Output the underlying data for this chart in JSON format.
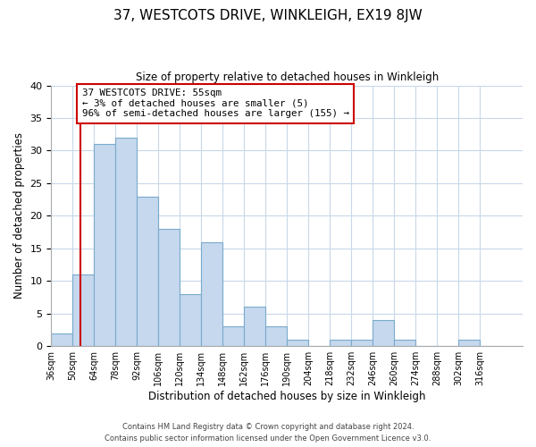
{
  "title": "37, WESTCOTS DRIVE, WINKLEIGH, EX19 8JW",
  "subtitle": "Size of property relative to detached houses in Winkleigh",
  "xlabel": "Distribution of detached houses by size in Winkleigh",
  "ylabel": "Number of detached properties",
  "bar_color": "#c5d8ed",
  "bar_edge_color": "#7aaacc",
  "bins": [
    "36sqm",
    "50sqm",
    "64sqm",
    "78sqm",
    "92sqm",
    "106sqm",
    "120sqm",
    "134sqm",
    "148sqm",
    "162sqm",
    "176sqm",
    "190sqm",
    "204sqm",
    "218sqm",
    "232sqm",
    "246sqm",
    "260sqm",
    "274sqm",
    "288sqm",
    "302sqm",
    "316sqm"
  ],
  "counts": [
    2,
    11,
    31,
    32,
    23,
    18,
    8,
    16,
    3,
    6,
    3,
    1,
    0,
    1,
    1,
    4,
    1,
    0,
    0,
    1,
    0
  ],
  "bin_edges_num": [
    36,
    50,
    64,
    78,
    92,
    106,
    120,
    134,
    148,
    162,
    176,
    190,
    204,
    218,
    232,
    246,
    260,
    274,
    288,
    302,
    316,
    330
  ],
  "property_line_x": 55,
  "property_line_color": "#cc0000",
  "annotation_line1": "37 WESTCOTS DRIVE: 55sqm",
  "annotation_line2": "← 3% of detached houses are smaller (5)",
  "annotation_line3": "96% of semi-detached houses are larger (155) →",
  "annotation_box_color": "#ffffff",
  "annotation_box_edge_color": "#cc0000",
  "ylim": [
    0,
    40
  ],
  "yticks": [
    0,
    5,
    10,
    15,
    20,
    25,
    30,
    35,
    40
  ],
  "footer1": "Contains HM Land Registry data © Crown copyright and database right 2024.",
  "footer2": "Contains public sector information licensed under the Open Government Licence v3.0.",
  "background_color": "#ffffff",
  "grid_color": "#c8d8e8"
}
